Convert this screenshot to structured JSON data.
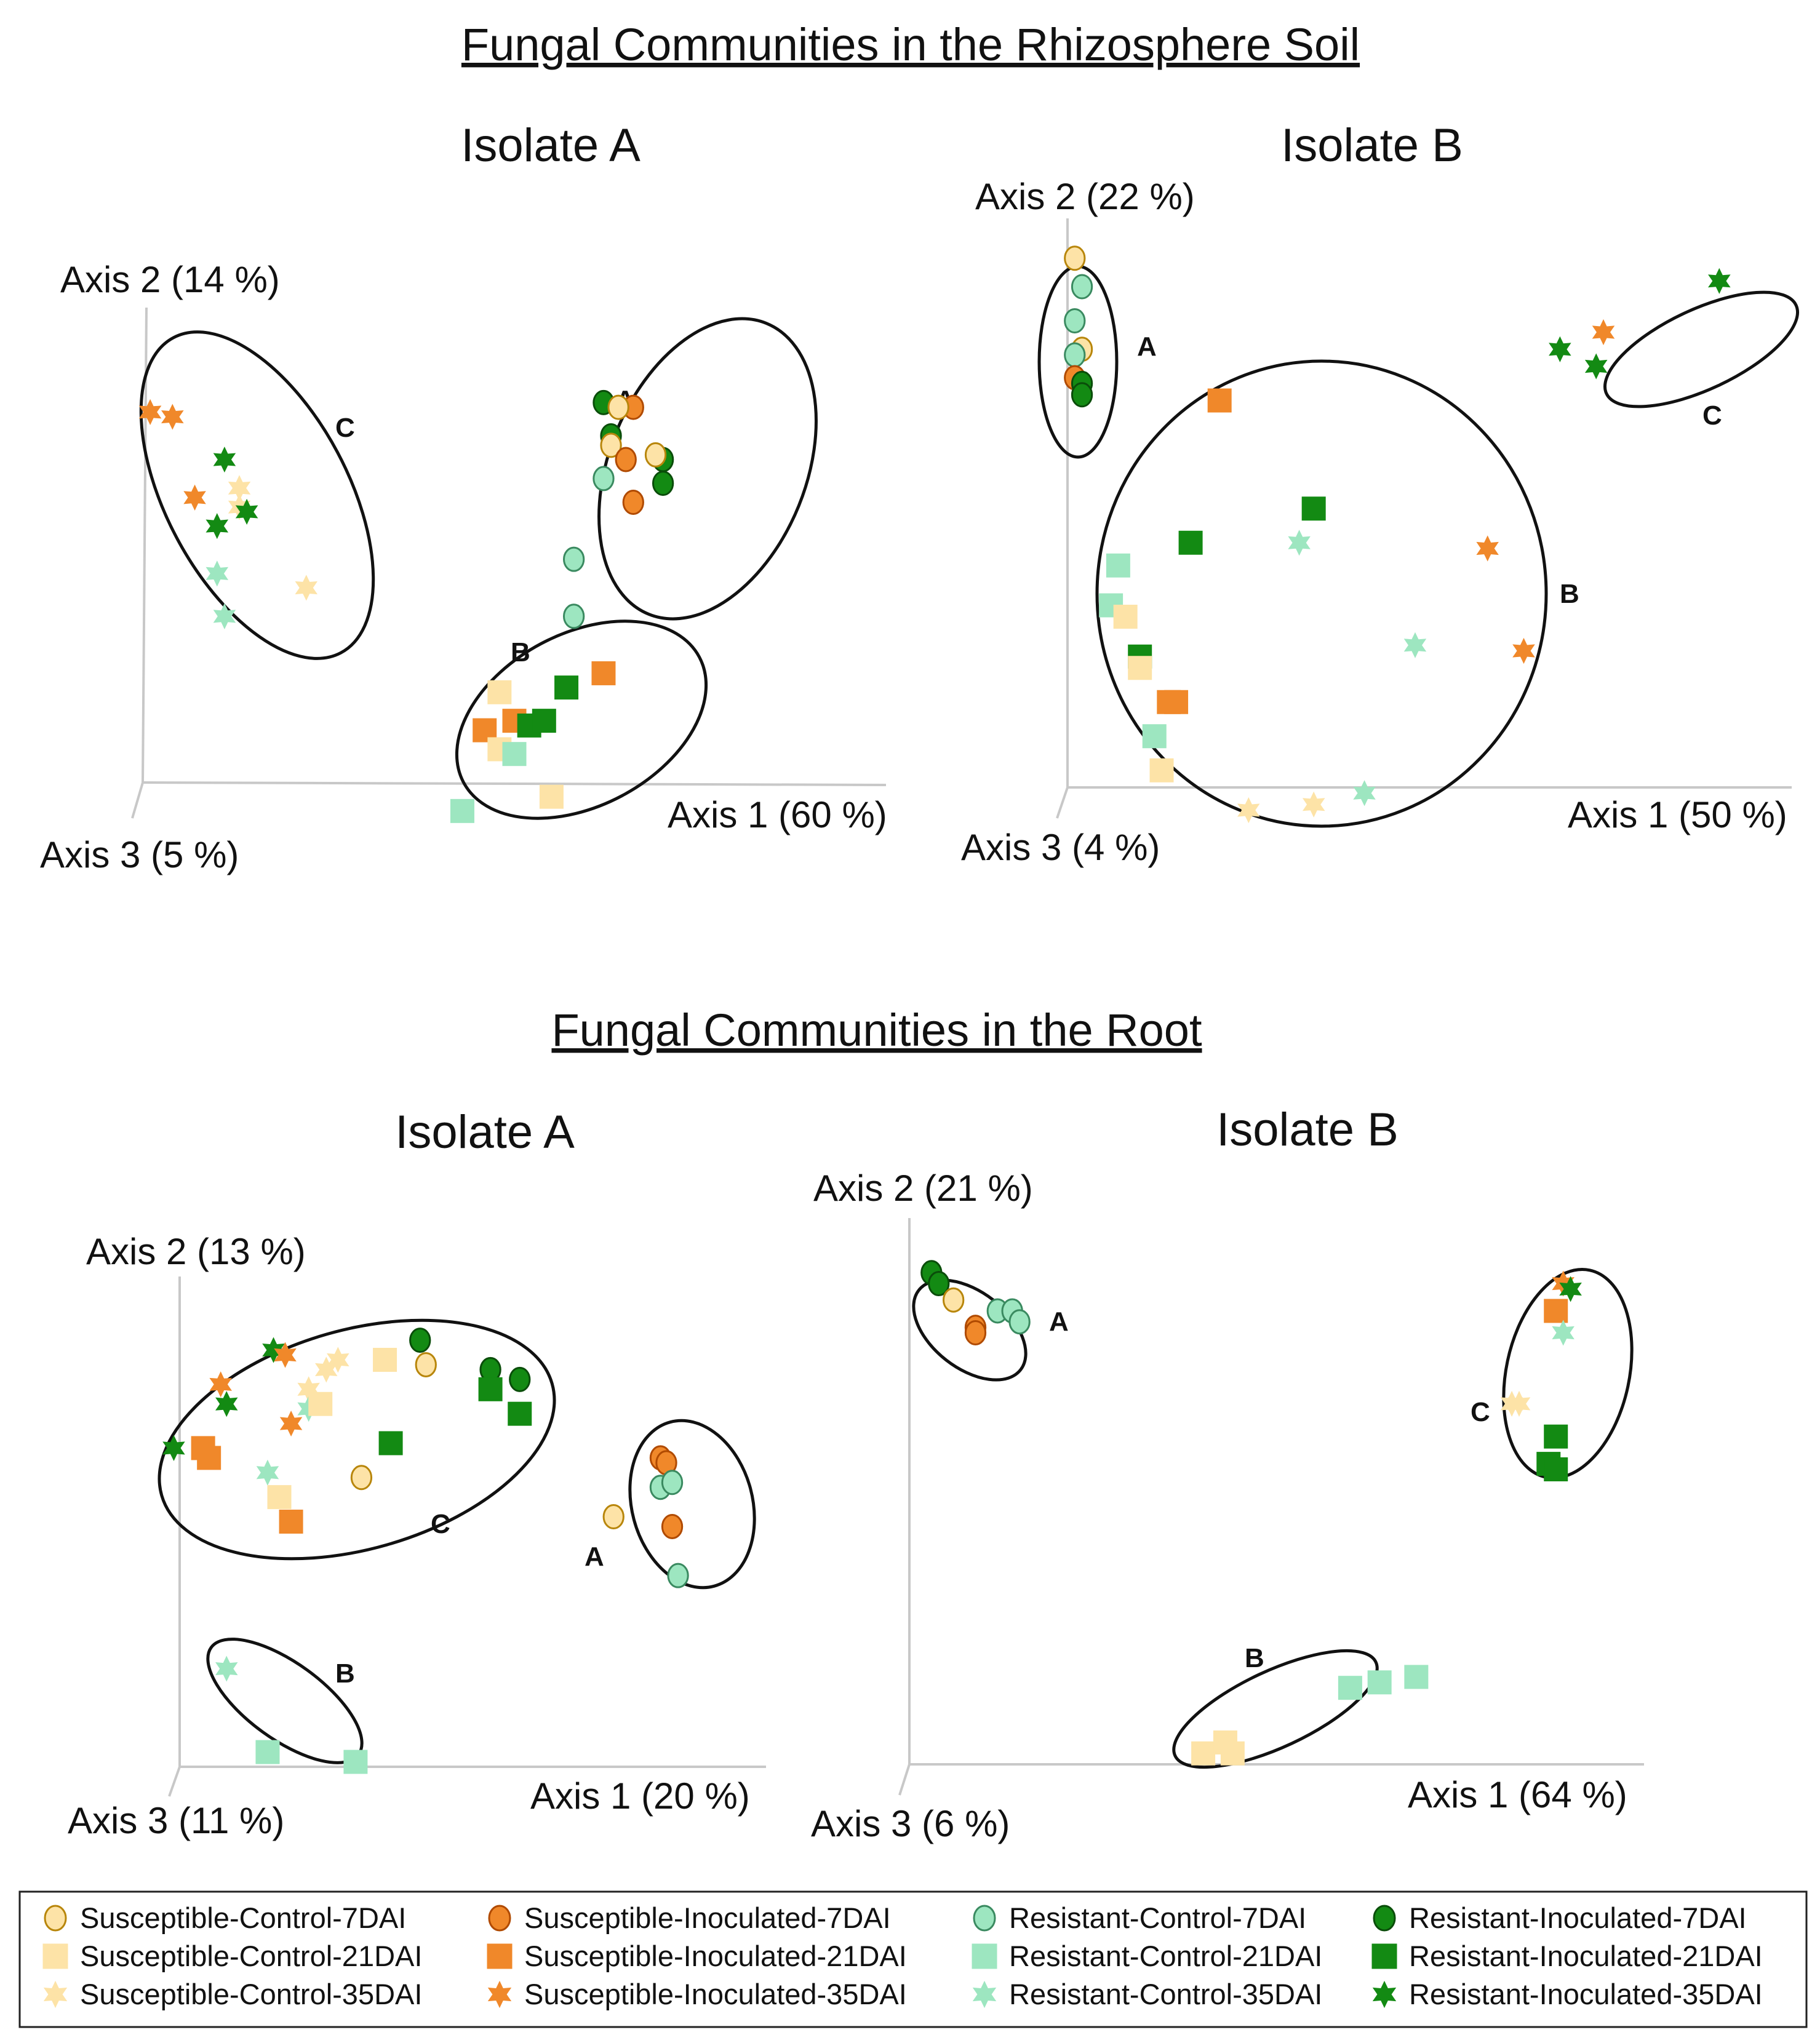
{
  "colors": {
    "scL": "#fde3a7",
    "scD": "#b8860b",
    "siL": "#f0882a",
    "siD": "#b04a00",
    "rcL": "#9de6c0",
    "rcD": "#3a8a60",
    "riL": "#138a13",
    "riD": "#0a4d0a",
    "axis": "#c8c8c8",
    "ellipse": "#111111"
  },
  "sections": [
    {
      "title": "Fungal Communities in the Rhizosphere Soil"
    },
    {
      "title": "Fungal Communities in the Root"
    }
  ],
  "chart_data": [
    {
      "type": "scatter",
      "section": "Fungal Communities in the Rhizosphere Soil",
      "title": "Isolate A",
      "axes": {
        "axis1": "Axis 1 (60 %)",
        "axis2": "Axis 2 (14 %)",
        "axis3": "Axis 3 (5 %)"
      },
      "clusters": [
        {
          "label": "A",
          "members": [
            "Susceptible-Control-7DAI",
            "Susceptible-Inoculated-7DAI",
            "Resistant-Control-7DAI",
            "Resistant-Inoculated-7DAI"
          ]
        },
        {
          "label": "B",
          "members": [
            "Susceptible-Control-21DAI",
            "Susceptible-Inoculated-21DAI",
            "Resistant-Control-21DAI",
            "Resistant-Inoculated-21DAI"
          ]
        },
        {
          "label": "C",
          "members": [
            "Susceptible-Control-35DAI",
            "Susceptible-Inoculated-35DAI",
            "Resistant-Control-35DAI",
            "Resistant-Inoculated-35DAI"
          ]
        }
      ],
      "points": [
        {
          "g": "ri7",
          "x": 0.62,
          "y": 0.8
        },
        {
          "g": "si7",
          "x": 0.66,
          "y": 0.79
        },
        {
          "g": "sc7",
          "x": 0.64,
          "y": 0.79
        },
        {
          "g": "ri7",
          "x": 0.63,
          "y": 0.73
        },
        {
          "g": "sc7",
          "x": 0.63,
          "y": 0.71
        },
        {
          "g": "si7",
          "x": 0.65,
          "y": 0.68
        },
        {
          "g": "ri7",
          "x": 0.7,
          "y": 0.68
        },
        {
          "g": "sc7",
          "x": 0.69,
          "y": 0.69
        },
        {
          "g": "ri7",
          "x": 0.7,
          "y": 0.63
        },
        {
          "g": "rc7",
          "x": 0.62,
          "y": 0.64
        },
        {
          "g": "si7",
          "x": 0.66,
          "y": 0.59
        },
        {
          "g": "rc7",
          "x": 0.58,
          "y": 0.47
        },
        {
          "g": "rc7",
          "x": 0.58,
          "y": 0.35
        },
        {
          "g": "si21",
          "x": 0.62,
          "y": 0.23
        },
        {
          "g": "ri21",
          "x": 0.57,
          "y": 0.2
        },
        {
          "g": "sc21",
          "x": 0.48,
          "y": 0.19
        },
        {
          "g": "si21",
          "x": 0.5,
          "y": 0.13
        },
        {
          "g": "ri21",
          "x": 0.52,
          "y": 0.12
        },
        {
          "g": "ri21",
          "x": 0.54,
          "y": 0.13
        },
        {
          "g": "si21",
          "x": 0.46,
          "y": 0.11
        },
        {
          "g": "sc21",
          "x": 0.48,
          "y": 0.07
        },
        {
          "g": "rc21",
          "x": 0.5,
          "y": 0.06
        },
        {
          "g": "sc21",
          "x": 0.55,
          "y": -0.03
        },
        {
          "g": "rc21",
          "x": 0.43,
          "y": -0.06
        },
        {
          "g": "si35",
          "x": 0.01,
          "y": 0.78
        },
        {
          "g": "si35",
          "x": 0.04,
          "y": 0.77
        },
        {
          "g": "ri35",
          "x": 0.11,
          "y": 0.68
        },
        {
          "g": "si35",
          "x": 0.07,
          "y": 0.6
        },
        {
          "g": "sc35",
          "x": 0.13,
          "y": 0.62
        },
        {
          "g": "sc35",
          "x": 0.13,
          "y": 0.58
        },
        {
          "g": "ri35",
          "x": 0.14,
          "y": 0.57
        },
        {
          "g": "ri35",
          "x": 0.1,
          "y": 0.54
        },
        {
          "g": "rc35",
          "x": 0.1,
          "y": 0.44
        },
        {
          "g": "sc35",
          "x": 0.22,
          "y": 0.41
        },
        {
          "g": "rc35",
          "x": 0.11,
          "y": 0.35
        }
      ]
    },
    {
      "type": "scatter",
      "section": "Fungal Communities in the Rhizosphere Soil",
      "title": "Isolate B",
      "axes": {
        "axis1": "Axis 1 (50 %)",
        "axis2": "Axis 2 (22 %)",
        "axis3": "Axis 3 (4 %)"
      },
      "clusters": [
        {
          "label": "A",
          "members": [
            "7DAI groups"
          ]
        },
        {
          "label": "B",
          "members": [
            "21DAI groups",
            "Resistant-Control-35DAI",
            "Susceptible-Inoculated-35DAI"
          ]
        },
        {
          "label": "C",
          "members": [
            "Resistant-Inoculated-35DAI",
            "Susceptible-Inoculated-35DAI"
          ]
        }
      ],
      "points": [
        {
          "g": "sc7",
          "x": 0.01,
          "y": 0.93
        },
        {
          "g": "rc7",
          "x": 0.02,
          "y": 0.88
        },
        {
          "g": "rc7",
          "x": 0.01,
          "y": 0.82
        },
        {
          "g": "sc7",
          "x": 0.02,
          "y": 0.77
        },
        {
          "g": "rc7",
          "x": 0.01,
          "y": 0.76
        },
        {
          "g": "si7",
          "x": 0.01,
          "y": 0.72
        },
        {
          "g": "ri7",
          "x": 0.02,
          "y": 0.71
        },
        {
          "g": "ri7",
          "x": 0.02,
          "y": 0.69
        },
        {
          "g": "si21",
          "x": 0.21,
          "y": 0.68
        },
        {
          "g": "ri21",
          "x": 0.34,
          "y": 0.49
        },
        {
          "g": "ri21",
          "x": 0.17,
          "y": 0.43
        },
        {
          "g": "rc21",
          "x": 0.07,
          "y": 0.39
        },
        {
          "g": "rc21",
          "x": 0.06,
          "y": 0.32
        },
        {
          "g": "sc21",
          "x": 0.08,
          "y": 0.3
        },
        {
          "g": "ri21",
          "x": 0.1,
          "y": 0.23
        },
        {
          "g": "sc21",
          "x": 0.1,
          "y": 0.21
        },
        {
          "g": "si21",
          "x": 0.14,
          "y": 0.15
        },
        {
          "g": "si21",
          "x": 0.15,
          "y": 0.15
        },
        {
          "g": "rc21",
          "x": 0.12,
          "y": 0.09
        },
        {
          "g": "sc21",
          "x": 0.13,
          "y": 0.03
        },
        {
          "g": "rc35",
          "x": 0.32,
          "y": 0.43
        },
        {
          "g": "si35",
          "x": 0.58,
          "y": 0.42
        },
        {
          "g": "rc35",
          "x": 0.48,
          "y": 0.25
        },
        {
          "g": "si35",
          "x": 0.63,
          "y": 0.24
        },
        {
          "g": "sc35",
          "x": 0.25,
          "y": -0.04
        },
        {
          "g": "sc35",
          "x": 0.34,
          "y": -0.03
        },
        {
          "g": "rc35",
          "x": 0.41,
          "y": -0.01
        },
        {
          "g": "ri35",
          "x": 0.9,
          "y": 0.89
        },
        {
          "g": "si35",
          "x": 0.74,
          "y": 0.8
        },
        {
          "g": "ri35",
          "x": 0.68,
          "y": 0.77
        },
        {
          "g": "ri35",
          "x": 0.73,
          "y": 0.74
        }
      ]
    },
    {
      "type": "scatter",
      "section": "Fungal Communities in the Root",
      "title": "Isolate A",
      "axes": {
        "axis1": "Axis 1 (20 %)",
        "axis2": "Axis 2 (13 %)",
        "axis3": "Axis 3 (11 %)"
      },
      "clusters": [
        {
          "label": "A",
          "members": [
            "7DAI groups"
          ]
        },
        {
          "label": "B",
          "members": [
            "Resistant-Control-21DAI",
            "Resistant-Control-35DAI"
          ]
        },
        {
          "label": "C",
          "members": [
            "remaining 7/21/35DAI samples"
          ]
        }
      ],
      "points": [
        {
          "g": "ri7",
          "x": 0.41,
          "y": 0.87
        },
        {
          "g": "sc7",
          "x": 0.42,
          "y": 0.82
        },
        {
          "g": "ri7",
          "x": 0.53,
          "y": 0.81
        },
        {
          "g": "ri7",
          "x": 0.58,
          "y": 0.79
        },
        {
          "g": "ri21",
          "x": 0.53,
          "y": 0.77
        },
        {
          "g": "ri21",
          "x": 0.58,
          "y": 0.72
        },
        {
          "g": "sc21",
          "x": 0.35,
          "y": 0.83
        },
        {
          "g": "ri35",
          "x": 0.16,
          "y": 0.85
        },
        {
          "g": "si35",
          "x": 0.18,
          "y": 0.84
        },
        {
          "g": "sc35",
          "x": 0.27,
          "y": 0.83
        },
        {
          "g": "sc35",
          "x": 0.25,
          "y": 0.81
        },
        {
          "g": "si35",
          "x": 0.07,
          "y": 0.78
        },
        {
          "g": "ri35",
          "x": 0.08,
          "y": 0.74
        },
        {
          "g": "sc35",
          "x": 0.22,
          "y": 0.77
        },
        {
          "g": "rc35",
          "x": 0.22,
          "y": 0.73
        },
        {
          "g": "sc21",
          "x": 0.24,
          "y": 0.74
        },
        {
          "g": "si35",
          "x": 0.19,
          "y": 0.7
        },
        {
          "g": "ri21",
          "x": 0.36,
          "y": 0.66
        },
        {
          "g": "ri35",
          "x": -0.01,
          "y": 0.65
        },
        {
          "g": "si21",
          "x": 0.04,
          "y": 0.65
        },
        {
          "g": "si21",
          "x": 0.05,
          "y": 0.63
        },
        {
          "g": "rc35",
          "x": 0.15,
          "y": 0.6
        },
        {
          "g": "sc7",
          "x": 0.31,
          "y": 0.59
        },
        {
          "g": "sc21",
          "x": 0.17,
          "y": 0.55
        },
        {
          "g": "si21",
          "x": 0.19,
          "y": 0.5
        },
        {
          "g": "si7",
          "x": 0.82,
          "y": 0.63
        },
        {
          "g": "si7",
          "x": 0.83,
          "y": 0.62
        },
        {
          "g": "rc7",
          "x": 0.82,
          "y": 0.57
        },
        {
          "g": "rc7",
          "x": 0.84,
          "y": 0.58
        },
        {
          "g": "sc7",
          "x": 0.74,
          "y": 0.51
        },
        {
          "g": "si7",
          "x": 0.84,
          "y": 0.49
        },
        {
          "g": "rc7",
          "x": 0.85,
          "y": 0.39
        },
        {
          "g": "rc35",
          "x": 0.08,
          "y": 0.2
        },
        {
          "g": "rc21",
          "x": 0.15,
          "y": 0.03
        },
        {
          "g": "rc21",
          "x": 0.3,
          "y": 0.01
        }
      ]
    },
    {
      "type": "scatter",
      "section": "Fungal Communities in the Root",
      "title": "Isolate B",
      "axes": {
        "axis1": "Axis 1 (64 %)",
        "axis2": "Axis 2 (21 %)",
        "axis3": "Axis 3 (6 %)"
      },
      "clusters": [
        {
          "label": "A",
          "members": [
            "7DAI groups"
          ]
        },
        {
          "label": "B",
          "members": [
            "Susceptible-Control-21DAI",
            "Resistant-Control-21DAI"
          ]
        },
        {
          "label": "C",
          "members": [
            "Inoculated 21/35DAI groups",
            "Susceptible-Control-35DAI"
          ]
        }
      ],
      "points": [
        {
          "g": "ri7",
          "x": 0.03,
          "y": 0.9
        },
        {
          "g": "ri7",
          "x": 0.04,
          "y": 0.88
        },
        {
          "g": "sc7",
          "x": 0.06,
          "y": 0.85
        },
        {
          "g": "rc7",
          "x": 0.12,
          "y": 0.83
        },
        {
          "g": "rc7",
          "x": 0.14,
          "y": 0.83
        },
        {
          "g": "rc7",
          "x": 0.15,
          "y": 0.81
        },
        {
          "g": "si7",
          "x": 0.09,
          "y": 0.8
        },
        {
          "g": "si7",
          "x": 0.09,
          "y": 0.79
        },
        {
          "g": "si35",
          "x": 0.89,
          "y": 0.88
        },
        {
          "g": "ri35",
          "x": 0.9,
          "y": 0.87
        },
        {
          "g": "si21",
          "x": 0.88,
          "y": 0.83
        },
        {
          "g": "rc35",
          "x": 0.89,
          "y": 0.79
        },
        {
          "g": "sc35",
          "x": 0.82,
          "y": 0.66
        },
        {
          "g": "sc35",
          "x": 0.83,
          "y": 0.66
        },
        {
          "g": "ri21",
          "x": 0.88,
          "y": 0.6
        },
        {
          "g": "ri21",
          "x": 0.87,
          "y": 0.55
        },
        {
          "g": "ri21",
          "x": 0.88,
          "y": 0.54
        },
        {
          "g": "rc21",
          "x": 0.6,
          "y": 0.14
        },
        {
          "g": "rc21",
          "x": 0.64,
          "y": 0.15
        },
        {
          "g": "rc21",
          "x": 0.69,
          "y": 0.16
        },
        {
          "g": "sc21",
          "x": 0.4,
          "y": 0.02
        },
        {
          "g": "sc21",
          "x": 0.43,
          "y": 0.04
        },
        {
          "g": "sc21",
          "x": 0.44,
          "y": 0.02
        }
      ]
    }
  ],
  "legend": [
    {
      "g": "sc7",
      "label": "Susceptible-Control-7DAI"
    },
    {
      "g": "sc21",
      "label": "Susceptible-Control-21DAI"
    },
    {
      "g": "sc35",
      "label": "Susceptible-Control-35DAI"
    },
    {
      "g": "si7",
      "label": "Susceptible-Inoculated-7DAI"
    },
    {
      "g": "si21",
      "label": "Susceptible-Inoculated-21DAI"
    },
    {
      "g": "si35",
      "label": "Susceptible-Inoculated-35DAI"
    },
    {
      "g": "rc7",
      "label": "Resistant-Control-7DAI"
    },
    {
      "g": "rc21",
      "label": "Resistant-Control-21DAI"
    },
    {
      "g": "rc35",
      "label": "Resistant-Control-35DAI"
    },
    {
      "g": "ri7",
      "label": "Resistant-Inoculated-7DAI"
    },
    {
      "g": "ri21",
      "label": "Resistant-Inoculated-21DAI"
    },
    {
      "g": "ri35",
      "label": "Resistant-Inoculated-35DAI"
    }
  ]
}
